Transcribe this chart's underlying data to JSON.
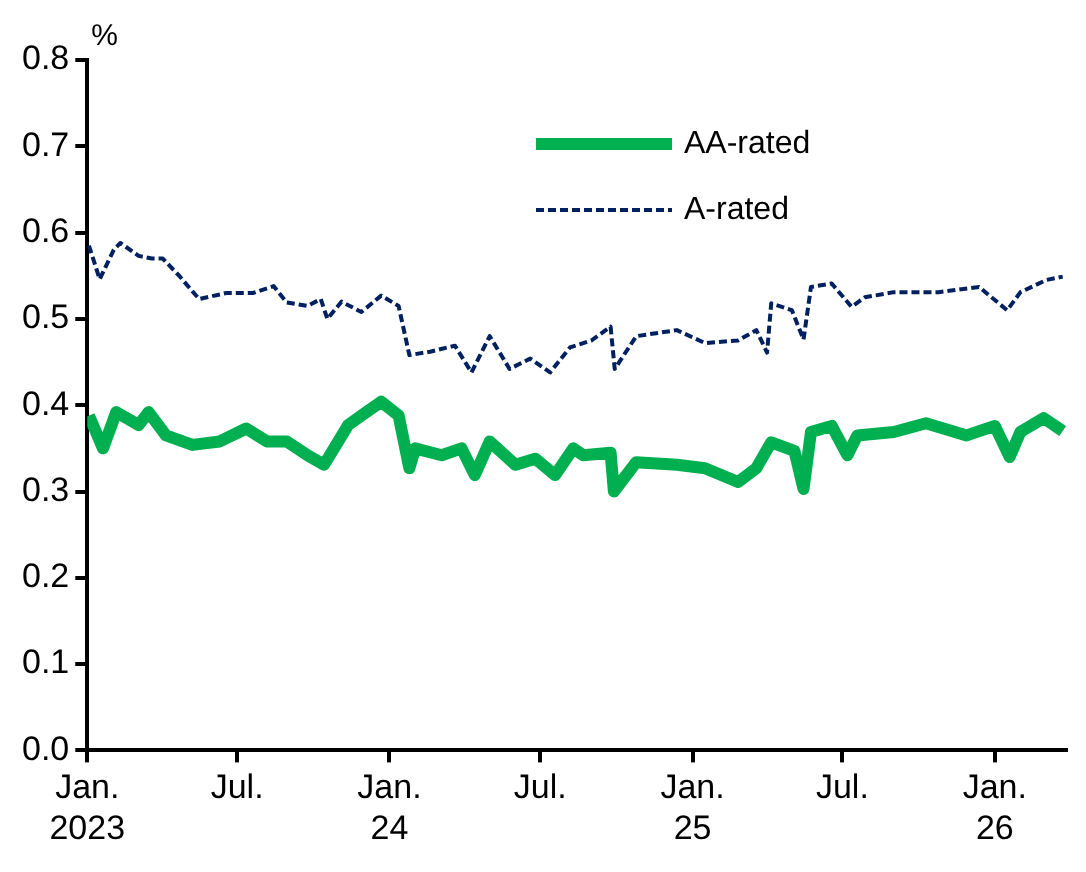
{
  "chart_data": {
    "type": "line",
    "ylabel": "%",
    "legend": "top right",
    "grid": false,
    "xlim": [
      "2023-01-01",
      "2026-03-28"
    ],
    "xticks": [
      {
        "value": "2023-01-01",
        "label": "Jan. 2023"
      },
      {
        "value": "2023-07-01",
        "label": "Jul."
      },
      {
        "value": "2024-01-01",
        "label": "Jan. 24"
      },
      {
        "value": "2024-07-01",
        "label": "Jul."
      },
      {
        "value": "2025-01-01",
        "label": "Jan. 25"
      },
      {
        "value": "2025-07-01",
        "label": "Jul."
      },
      {
        "value": "2026-01-01",
        "label": "Jan. 26"
      }
    ],
    "ylim": [
      0,
      0.8
    ],
    "yticks": [
      {
        "value": 0,
        "label": "0.0"
      },
      {
        "value": 0.1,
        "label": "0.1"
      },
      {
        "value": 0.2,
        "label": "0.2"
      },
      {
        "value": 0.3,
        "label": "0.3"
      },
      {
        "value": 0.4,
        "label": "0.4"
      },
      {
        "value": 0.5,
        "label": "0.5"
      },
      {
        "value": 0.6,
        "label": "0.6"
      },
      {
        "value": 0.7,
        "label": "0.7"
      },
      {
        "value": 0.8,
        "label": "0.8"
      }
    ],
    "series": [
      {
        "name": "AA-rated",
        "color": "#00b050",
        "line_style": "solid",
        "x": [
          "2023-01-03",
          "2023-01-20",
          "2023-02-05",
          "2023-03-04",
          "2023-03-16",
          "2023-04-06",
          "2023-05-08",
          "2023-06-10",
          "2023-07-12",
          "2023-08-06",
          "2023-08-30",
          "2023-09-24",
          "2023-10-14",
          "2023-10-26",
          "2023-11-12",
          "2023-11-28",
          "2023-12-22",
          "2024-01-12",
          "2024-01-25",
          "2024-02-01",
          "2024-03-04",
          "2024-03-28",
          "2024-04-13",
          "2024-05-01",
          "2024-06-01",
          "2024-06-25",
          "2024-07-19",
          "2024-08-10",
          "2024-08-22",
          "2024-09-24",
          "2024-09-28",
          "2024-10-25",
          "2024-12-13",
          "2025-01-16",
          "2025-02-25",
          "2025-03-19",
          "2025-04-06",
          "2025-05-04",
          "2025-05-15",
          "2025-05-24",
          "2025-06-18",
          "2025-07-07",
          "2025-07-19",
          "2025-09-01",
          "2025-10-10",
          "2025-11-28",
          "2026-01-01",
          "2026-01-19",
          "2026-02-01",
          "2026-03-01",
          "2026-03-24"
        ],
        "values": [
          0.388,
          0.35,
          0.392,
          0.377,
          0.392,
          0.365,
          0.354,
          0.358,
          0.373,
          0.358,
          0.358,
          0.342,
          0.331,
          0.35,
          0.377,
          0.388,
          0.404,
          0.388,
          0.327,
          0.35,
          0.342,
          0.35,
          0.319,
          0.358,
          0.331,
          0.338,
          0.319,
          0.35,
          0.342,
          0.345,
          0.3,
          0.334,
          0.331,
          0.327,
          0.311,
          0.327,
          0.357,
          0.347,
          0.303,
          0.369,
          0.376,
          0.342,
          0.365,
          0.369,
          0.379,
          0.365,
          0.376,
          0.34,
          0.369,
          0.385,
          0.37
        ]
      },
      {
        "name": "A-rated",
        "color": "#002060",
        "line_style": "dashed",
        "x": [
          "2023-01-03",
          "2023-01-16",
          "2023-02-02",
          "2023-02-10",
          "2023-03-04",
          "2023-03-20",
          "2023-04-02",
          "2023-04-22",
          "2023-05-16",
          "2023-06-18",
          "2023-07-20",
          "2023-08-14",
          "2023-08-30",
          "2023-09-24",
          "2023-10-10",
          "2023-10-18",
          "2023-11-04",
          "2023-11-28",
          "2023-12-22",
          "2024-01-12",
          "2024-01-25",
          "2024-02-19",
          "2024-03-20",
          "2024-04-09",
          "2024-05-01",
          "2024-05-25",
          "2024-06-19",
          "2024-07-13",
          "2024-08-06",
          "2024-09-01",
          "2024-09-24",
          "2024-09-29",
          "2024-10-25",
          "2024-12-13",
          "2025-01-16",
          "2025-02-25",
          "2025-03-19",
          "2025-04-01",
          "2025-04-06",
          "2025-05-01",
          "2025-05-15",
          "2025-05-24",
          "2025-06-18",
          "2025-07-12",
          "2025-07-28",
          "2025-09-01",
          "2025-10-25",
          "2025-12-13",
          "2026-01-16",
          "2026-02-01",
          "2026-03-04",
          "2026-03-24"
        ],
        "values": [
          0.585,
          0.546,
          0.58,
          0.588,
          0.573,
          0.57,
          0.57,
          0.55,
          0.523,
          0.53,
          0.53,
          0.538,
          0.519,
          0.515,
          0.523,
          0.5,
          0.52,
          0.508,
          0.527,
          0.515,
          0.458,
          0.462,
          0.469,
          0.438,
          0.48,
          0.442,
          0.454,
          0.438,
          0.467,
          0.475,
          0.491,
          0.442,
          0.48,
          0.487,
          0.472,
          0.475,
          0.487,
          0.461,
          0.518,
          0.51,
          0.476,
          0.537,
          0.541,
          0.514,
          0.525,
          0.531,
          0.531,
          0.537,
          0.51,
          0.531,
          0.545,
          0.549
        ]
      }
    ]
  }
}
